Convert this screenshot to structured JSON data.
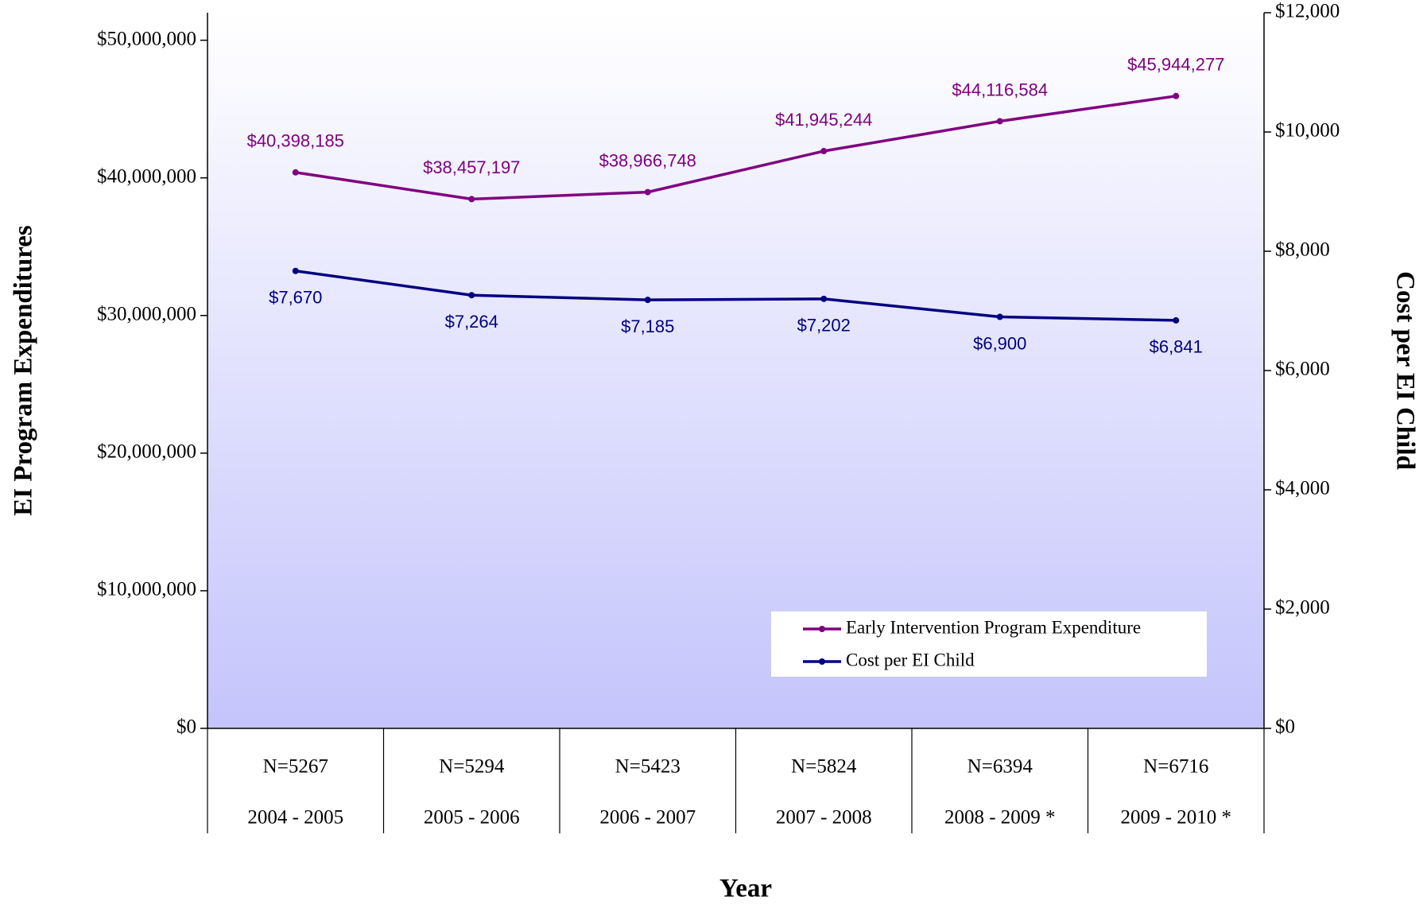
{
  "chart_data": {
    "type": "line",
    "x_label": "Year",
    "y_label": "EI Program Expenditures",
    "y2_label": "Cost per EI Child",
    "categories": [
      "2004 - 2005",
      "2005 - 2006",
      "2006 - 2007",
      "2007 - 2008",
      "2008 - 2009 *",
      "2009 - 2010 *"
    ],
    "category_counts": [
      "N=5267",
      "N=5294",
      "N=5423",
      "N=5824",
      "N=6394",
      "N=6716"
    ],
    "series": [
      {
        "name": "Early Intervention Program Expenditure",
        "color": "#800080",
        "values": [
          40398185,
          38457197,
          38966748,
          41945244,
          44116584,
          45944277
        ],
        "value_labels": [
          "$40,398,185",
          "$38,457,197",
          "$38,966,748",
          "$41,945,244",
          "$44,116,584",
          "$45,944,277"
        ]
      },
      {
        "name": "Cost per EI Child",
        "color": "#000080",
        "axis": "y2",
        "values": [
          7670,
          7264,
          7185,
          7202,
          6900,
          6841
        ],
        "value_labels": [
          "$7,670",
          "$7,264",
          "$7,185",
          "$7,202",
          "$6,900",
          "$6,841"
        ]
      }
    ],
    "ylim": [
      0,
      52000000
    ],
    "yticks": [
      {
        "value": 0,
        "label": "$0"
      },
      {
        "value": 10000000,
        "label": "$10,000,000"
      },
      {
        "value": 20000000,
        "label": "$20,000,000"
      },
      {
        "value": 30000000,
        "label": "$30,000,000"
      },
      {
        "value": 40000000,
        "label": "$40,000,000"
      },
      {
        "value": 50000000,
        "label": "$50,000,000"
      }
    ],
    "y2lim": [
      0,
      12000
    ],
    "y2ticks": [
      {
        "value": 0,
        "label": "$0"
      },
      {
        "value": 2000,
        "label": "$2,000"
      },
      {
        "value": 4000,
        "label": "$4,000"
      },
      {
        "value": 6000,
        "label": "$6,000"
      },
      {
        "value": 8000,
        "label": "$8,000"
      },
      {
        "value": 10000,
        "label": "$10,000"
      },
      {
        "value": 12000,
        "label": "$12,000"
      }
    ],
    "legend": "lower right"
  }
}
